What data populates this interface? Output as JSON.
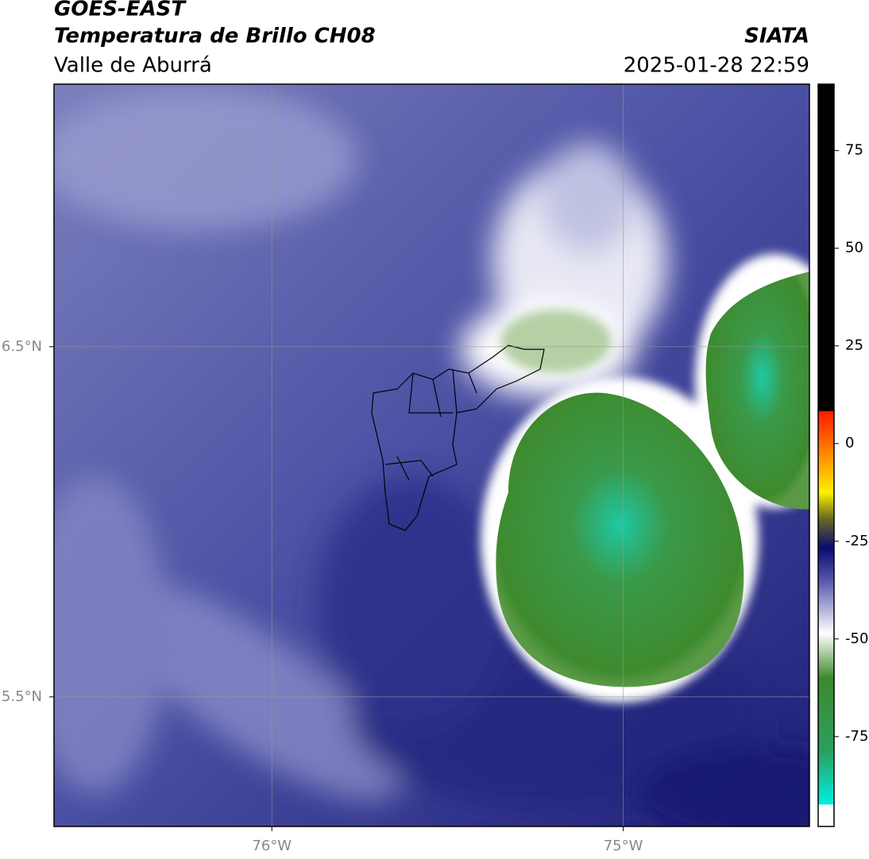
{
  "header": {
    "title": "GOES-EAST",
    "subtitle": "Temperatura de Brillo CH08",
    "region": "Valle de Aburrá",
    "source": "SIATA",
    "timestamp": "2025-01-28 22:59"
  },
  "map": {
    "xlim": [
      -76.62,
      -74.47
    ],
    "ylim": [
      5.13,
      7.25
    ],
    "xticks": [
      {
        "value": -76,
        "label": "76°W"
      },
      {
        "value": -75,
        "label": "75°W"
      }
    ],
    "yticks": [
      {
        "value": 6.5,
        "label": "6.5°N"
      },
      {
        "value": 5.5,
        "label": "5.5°N"
      }
    ],
    "grid": true
  },
  "colorbar": {
    "lim": [
      -98,
      92
    ],
    "ticks": [
      75,
      50,
      25,
      0,
      -25,
      -50,
      -75
    ]
  }
}
